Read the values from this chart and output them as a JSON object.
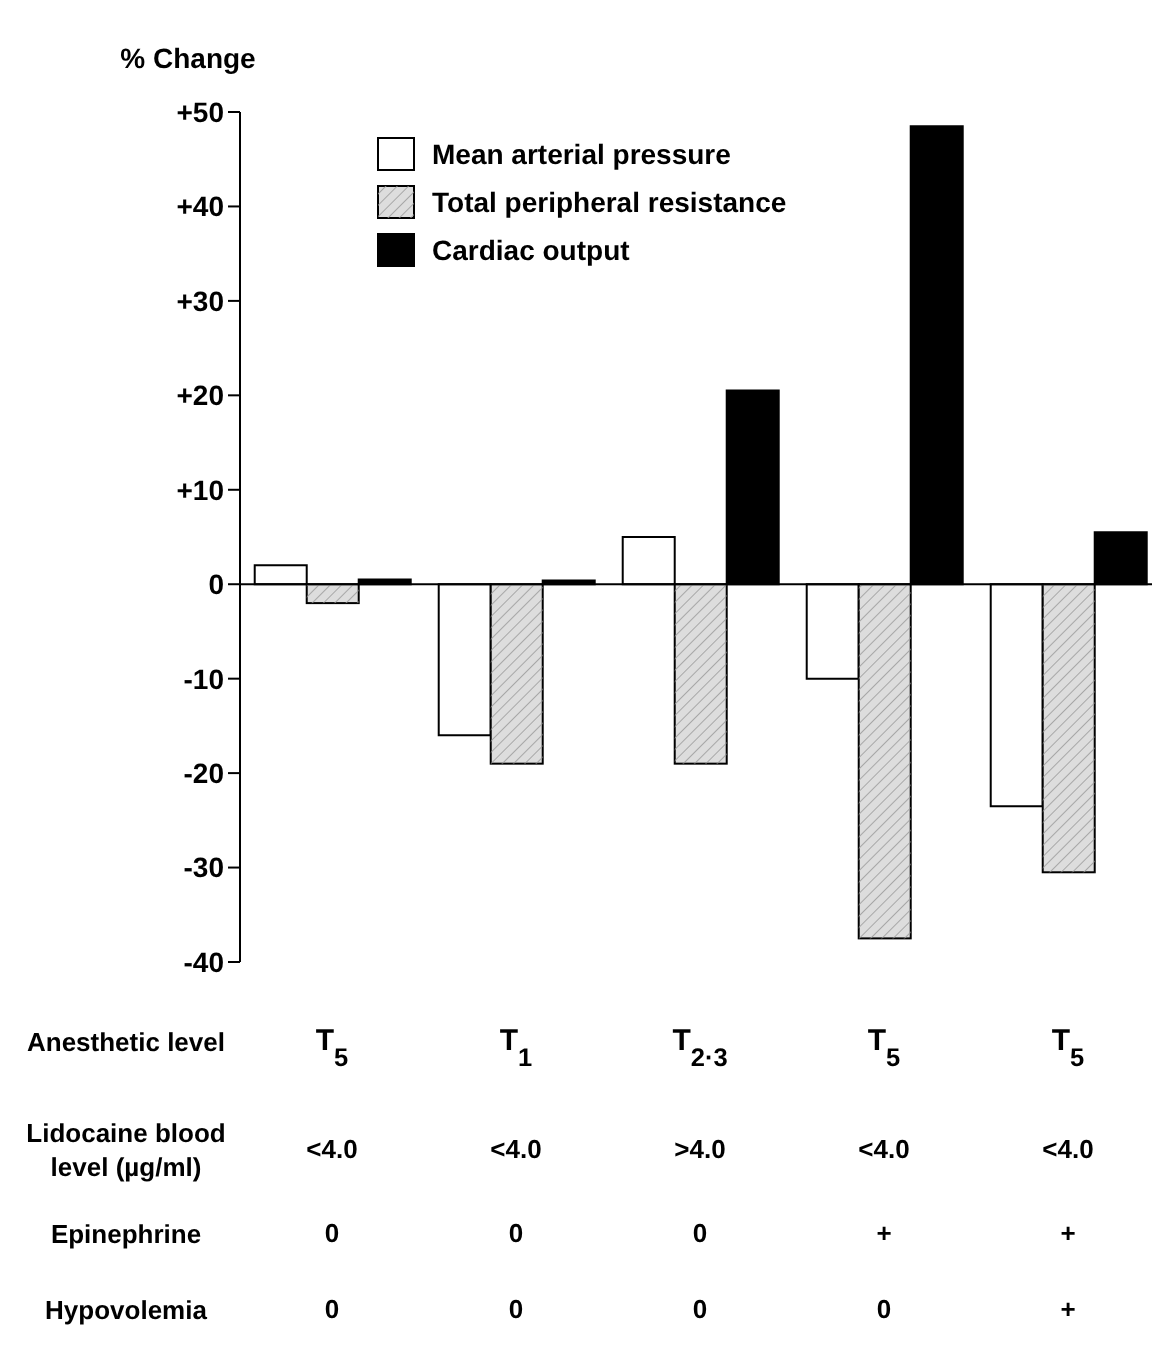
{
  "chart_data": {
    "type": "bar",
    "ylabel": "% Change",
    "categories": [
      "T$_{5}$\n<4.0\n0\n0",
      "T$_{1}$\n<4.0\n0\n0",
      "T$_{2·3}$\n>4.0\n0\n0",
      "T$_{5}$\n<4.0\n+\n0",
      "T$_{5}$\n<4.0\n+\n+"
    ],
    "series": [
      {
        "name": "Mean arterial pressure",
        "color": "#ffffff",
        "values": [
          2,
          -16,
          5,
          -10,
          -23.5
        ]
      },
      {
        "name": "Total peripheral resistance",
        "color": "#dddddd",
        "values": [
          -2,
          -19,
          -19,
          -37.5,
          -30.5
        ]
      },
      {
        "name": "Cardiac output",
        "color": "#000000",
        "values": [
          0.5,
          0.4,
          20.5,
          48.5,
          5.5
        ]
      }
    ],
    "ylim": [
      -40,
      50
    ],
    "yticks": [
      -40,
      -30,
      -20,
      -10,
      0,
      {
        "value": 10,
        "label": "+10"
      },
      {
        "value": 20,
        "label": "+20"
      },
      {
        "value": 30,
        "label": "+30"
      },
      {
        "value": 40,
        "label": "+40"
      },
      {
        "value": 50,
        "label": "+50"
      }
    ],
    "grid": false,
    "legend": "top left",
    "ref_lines": [
      {
        "axis": "y",
        "value": 0,
        "color": "#000000"
      }
    ],
    "annotations": [
      "Anesthetic level",
      "Lidocaine blood level (µg/ml)",
      "Epinephrine",
      "Hypovolemia"
    ]
  }
}
